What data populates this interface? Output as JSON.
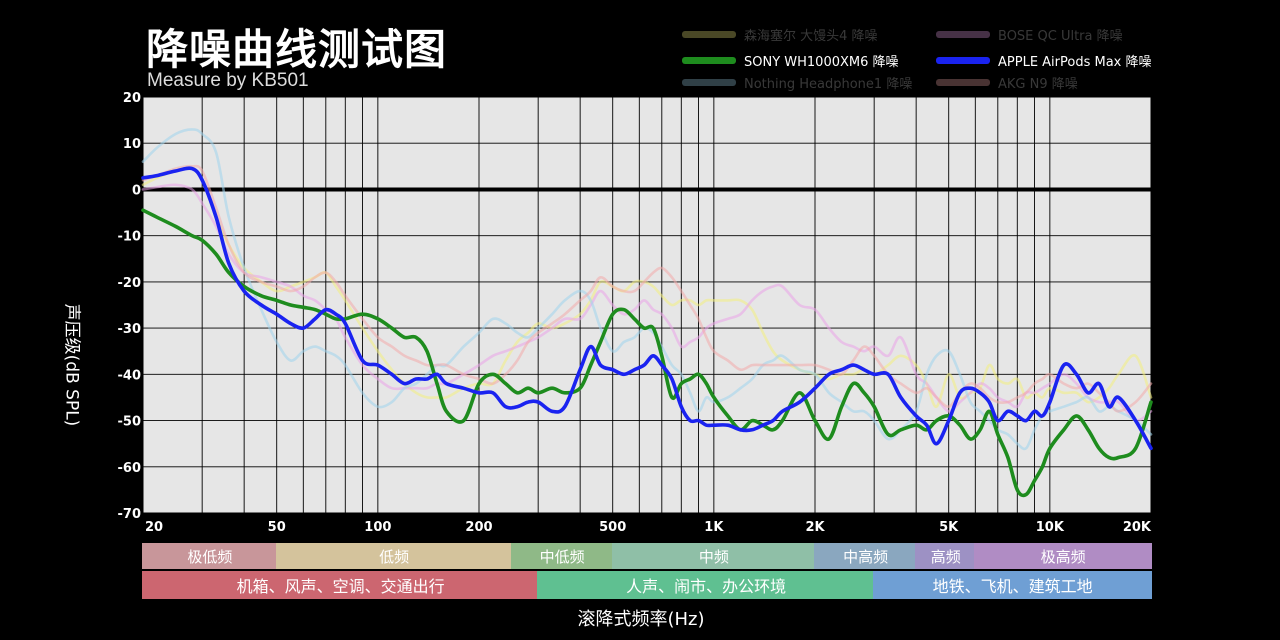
{
  "header": {
    "title": "降噪曲线测试图",
    "subtitle": "Measure by KB501"
  },
  "chart_data": {
    "type": "line",
    "xlabel": "滚降式频率(Hz)",
    "ylabel": "声压级(dB SPL)",
    "x_scale": "log",
    "xlim": [
      20,
      20000
    ],
    "ylim": [
      -70,
      20
    ],
    "y_ticks": [
      "20",
      "10",
      "0",
      "-10",
      "-20",
      "-30",
      "-40",
      "-50",
      "-60",
      "-70"
    ],
    "x_ticks": [
      {
        "value": 20,
        "label": "20"
      },
      {
        "value": 50,
        "label": "50"
      },
      {
        "value": 100,
        "label": "100"
      },
      {
        "value": 200,
        "label": "200"
      },
      {
        "value": 500,
        "label": "500"
      },
      {
        "value": 1000,
        "label": "1K"
      },
      {
        "value": 2000,
        "label": "2K"
      },
      {
        "value": 5000,
        "label": "5K"
      },
      {
        "value": 10000,
        "label": "10K"
      },
      {
        "value": 20000,
        "label": "20K"
      }
    ],
    "grid": true,
    "reference_line": 0,
    "freq_bands": [
      {
        "label": "极低频",
        "from": 20,
        "to": 50,
        "color": "#c8969a"
      },
      {
        "label": "低频",
        "from": 50,
        "to": 250,
        "color": "#d4c39c"
      },
      {
        "label": "中低频",
        "from": 250,
        "to": 500,
        "color": "#8fb987"
      },
      {
        "label": "中频",
        "from": 500,
        "to": 2000,
        "color": "#8fbfa7"
      },
      {
        "label": "中高频",
        "from": 2000,
        "to": 4000,
        "color": "#8aa7bf"
      },
      {
        "label": "高频",
        "from": 4000,
        "to": 6000,
        "color": "#9d91c4"
      },
      {
        "label": "极高频",
        "from": 6000,
        "to": 20000,
        "color": "#b08cc4"
      }
    ],
    "scenes": [
      {
        "label": "机箱、风声、空调、交通出行",
        "from": 20,
        "to": 300,
        "color": "#cc6670"
      },
      {
        "label": "人声、闹市、办公环境",
        "from": 300,
        "to": 3000,
        "color": "#5fc091"
      },
      {
        "label": "地铁、飞机、建筑工地",
        "from": 3000,
        "to": 20000,
        "color": "#6f9fd4"
      }
    ],
    "x": [
      20,
      22,
      25,
      28,
      30,
      33,
      36,
      40,
      45,
      50,
      55,
      60,
      65,
      70,
      75,
      80,
      90,
      100,
      110,
      120,
      130,
      140,
      150,
      160,
      180,
      200,
      220,
      240,
      260,
      280,
      300,
      330,
      360,
      400,
      430,
      460,
      500,
      540,
      580,
      620,
      660,
      700,
      750,
      800,
      850,
      900,
      950,
      1000,
      1100,
      1200,
      1300,
      1400,
      1500,
      1600,
      1800,
      2000,
      2200,
      2400,
      2600,
      2800,
      3000,
      3300,
      3600,
      4000,
      4300,
      4600,
      5000,
      5400,
      5800,
      6200,
      6600,
      7000,
      7500,
      8000,
      8500,
      9000,
      9500,
      10000,
      11000,
      12000,
      13000,
      14000,
      15000,
      16000,
      18000,
      20000
    ],
    "series": [
      {
        "name": "森海塞尔 大馒头4 降噪",
        "color": "#f3ef7e",
        "active": false,
        "values": [
          1,
          2.5,
          4,
          4.5,
          2,
          -6,
          -12,
          -17,
          -20,
          -22,
          -21,
          -20,
          -19,
          -18,
          -21,
          -24,
          -30,
          -35,
          -39,
          -42,
          -44,
          -45,
          -45,
          -45,
          -43,
          -42,
          -42,
          -37,
          -33,
          -31,
          -29,
          -30,
          -29,
          -27,
          -24,
          -20,
          -21,
          -22,
          -20,
          -20,
          -21,
          -23,
          -25,
          -24,
          -24,
          -25,
          -24,
          -24,
          -24,
          -24,
          -26,
          -31,
          -35,
          -37,
          -39,
          -40,
          -41,
          -40,
          -40,
          -39,
          -40,
          -38,
          -36,
          -38,
          -42,
          -47,
          -40,
          -45,
          -44,
          -43,
          -38,
          -41,
          -42,
          -41,
          -45,
          -44,
          -45,
          -43,
          -44,
          -44,
          -46,
          -45,
          -43,
          -40,
          -36,
          -45
        ]
      },
      {
        "name": "BOSE QC Ultra 降噪",
        "color": "#e9a3e8",
        "active": false,
        "values": [
          0,
          0.5,
          1,
          0,
          -3,
          -8,
          -14,
          -18,
          -19,
          -20,
          -21,
          -23,
          -24,
          -26,
          -28,
          -32,
          -38,
          -41,
          -43,
          -43,
          -43,
          -43,
          -42,
          -42,
          -40,
          -38,
          -36,
          -35,
          -34,
          -33,
          -32,
          -30,
          -28,
          -28,
          -25,
          -22,
          -25,
          -27,
          -26,
          -24,
          -26,
          -27,
          -30,
          -34,
          -33,
          -32,
          -30,
          -29,
          -28,
          -27,
          -24,
          -22,
          -21,
          -21,
          -25,
          -26,
          -30,
          -33,
          -34,
          -35,
          -34,
          -36,
          -32,
          -40,
          -42,
          -45,
          -48,
          -46,
          -44,
          -42,
          -43,
          -45,
          -46,
          -47,
          -44,
          -44,
          -43,
          -42,
          -40,
          -42,
          -45,
          -46,
          -46,
          -46,
          -50,
          -48
        ]
      },
      {
        "name": "SONY WH1000XM6 降噪",
        "color": "#1e8c1e",
        "active": true,
        "values": [
          -4.5,
          -6,
          -8,
          -10,
          -11,
          -14,
          -18,
          -21,
          -23,
          -24,
          -25,
          -25.5,
          -26,
          -27,
          -28,
          -28,
          -27,
          -28,
          -30,
          -32,
          -32,
          -35,
          -42,
          -48,
          -50,
          -42,
          -40,
          -42,
          -44,
          -43,
          -44,
          -43,
          -44,
          -43,
          -38,
          -33,
          -27,
          -26,
          -28,
          -30,
          -30,
          -36,
          -45,
          -42,
          -41,
          -40,
          -42,
          -45,
          -49,
          -52,
          -50,
          -51,
          -52,
          -50,
          -44,
          -50,
          -54,
          -47,
          -42,
          -44,
          -47,
          -53,
          -52,
          -51,
          -52,
          -50,
          -49,
          -51,
          -54,
          -52,
          -48,
          -53,
          -58,
          -65,
          -66,
          -63,
          -60,
          -56,
          -52,
          -49,
          -52,
          -56,
          -58,
          -58,
          -56,
          -46
        ]
      },
      {
        "name": "APPLE AirPods Max 降噪",
        "color": "#1a23f0",
        "active": true,
        "values": [
          2.5,
          3,
          4,
          4.5,
          2,
          -6,
          -16,
          -22,
          -25,
          -27,
          -29,
          -30,
          -28,
          -26,
          -27,
          -29,
          -37,
          -38,
          -40,
          -42,
          -41,
          -41,
          -40,
          -42,
          -43,
          -44,
          -44,
          -47,
          -47,
          -46,
          -46,
          -48,
          -47,
          -39,
          -34,
          -38,
          -39,
          -40,
          -39,
          -38,
          -36,
          -38,
          -41,
          -47,
          -50,
          -50,
          -51,
          -51,
          -51,
          -52,
          -52,
          -51,
          -50,
          -48,
          -46,
          -43,
          -40,
          -39,
          -38,
          -39,
          -40,
          -40,
          -45,
          -49,
          -51,
          -55,
          -50,
          -44,
          -43,
          -44,
          -46,
          -50,
          -48,
          -49,
          -50,
          -48,
          -49,
          -46,
          -38,
          -40,
          -44,
          -42,
          -47,
          -45,
          -50,
          -56
        ]
      },
      {
        "name": "Nothing Headphone1 降噪",
        "color": "#9fd4ec",
        "active": false,
        "values": [
          6,
          9,
          12,
          13,
          12,
          8,
          -6,
          -17,
          -26,
          -33,
          -37,
          -35,
          -34,
          -35,
          -36,
          -38,
          -44,
          -47,
          -46,
          -43,
          -42,
          -40,
          -38,
          -38,
          -34,
          -31,
          -28,
          -29,
          -31,
          -32,
          -30,
          -27,
          -24,
          -22,
          -24,
          -30,
          -35,
          -33,
          -32,
          -30,
          -31,
          -34,
          -38,
          -40,
          -44,
          -48,
          -45,
          -46,
          -45,
          -43,
          -41,
          -38,
          -37,
          -36,
          -39,
          -40,
          -44,
          -46,
          -48,
          -48,
          -50,
          -54,
          -52,
          -48,
          -40,
          -36,
          -35,
          -40,
          -46,
          -48,
          -50,
          -52,
          -53,
          -55,
          -56,
          -52,
          -49,
          -48,
          -47,
          -46,
          -45,
          -48,
          -47,
          -48,
          -50,
          -53
        ]
      },
      {
        "name": "AKG N9 降噪",
        "color": "#f2a9a9",
        "active": false,
        "values": [
          2,
          3,
          4.5,
          5,
          4,
          -4,
          -12,
          -18,
          -20,
          -21,
          -22,
          -21,
          -19,
          -18,
          -20,
          -23,
          -28,
          -32,
          -34,
          -36,
          -37,
          -38,
          -38,
          -38,
          -40,
          -41,
          -42,
          -40,
          -37,
          -33,
          -31,
          -29,
          -27,
          -24,
          -22,
          -19,
          -21,
          -22,
          -22,
          -20,
          -18,
          -17,
          -19,
          -22,
          -25,
          -28,
          -32,
          -35,
          -37,
          -39,
          -38,
          -38,
          -38,
          -38,
          -38,
          -38,
          -39,
          -40,
          -37,
          -34,
          -36,
          -40,
          -42,
          -44,
          -43,
          -45,
          -47,
          -44,
          -42,
          -43,
          -45,
          -46,
          -46,
          -45,
          -44,
          -42,
          -41,
          -40,
          -42,
          -43,
          -42,
          -44,
          -46,
          -48,
          -46,
          -42
        ]
      }
    ]
  }
}
